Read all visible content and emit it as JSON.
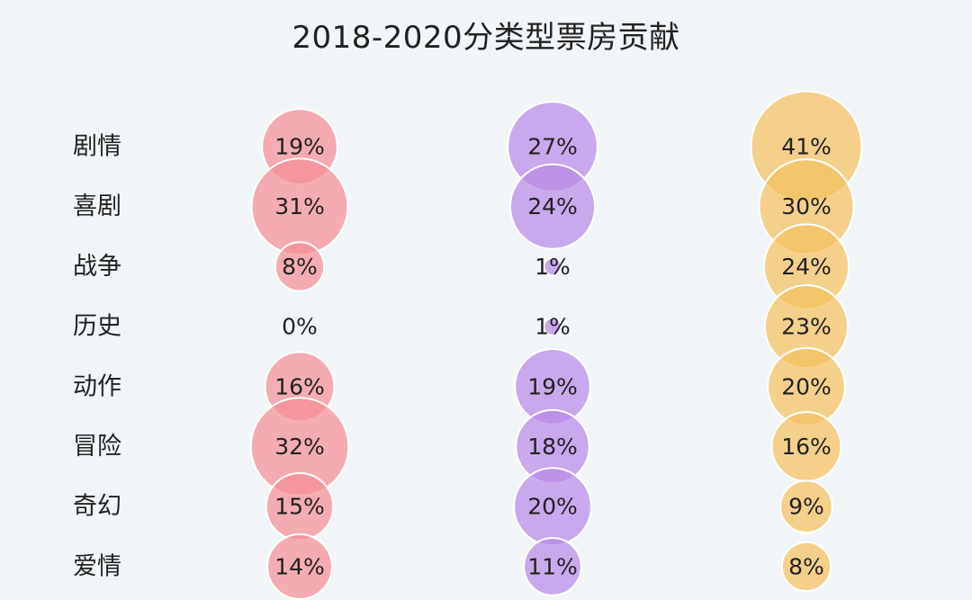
{
  "chart_data": {
    "type": "bubble",
    "title": "2018-2020分类型票房贡献",
    "categories": [
      "剧情",
      "喜剧",
      "战争",
      "历史",
      "动作",
      "冒险",
      "奇幻",
      "爱情"
    ],
    "series": [
      {
        "color": "#f58e95",
        "values": [
          19,
          31,
          8,
          0,
          16,
          32,
          15,
          14
        ],
        "labels": [
          "19%",
          "31%",
          "8%",
          "0%",
          "16%",
          "32%",
          "15%",
          "14%"
        ]
      },
      {
        "color": "#b88ae8",
        "values": [
          27,
          24,
          1,
          1,
          19,
          18,
          20,
          11
        ],
        "labels": [
          "27%",
          "24%",
          "1%",
          "1%",
          "19%",
          "18%",
          "20%",
          "11%"
        ]
      },
      {
        "color": "#f5c15f",
        "values": [
          41,
          30,
          24,
          23,
          20,
          16,
          9,
          8
        ],
        "labels": [
          "41%",
          "30%",
          "24%",
          "23%",
          "20%",
          "16%",
          "9%",
          "8%"
        ]
      }
    ],
    "legend": "none",
    "grid": false
  }
}
